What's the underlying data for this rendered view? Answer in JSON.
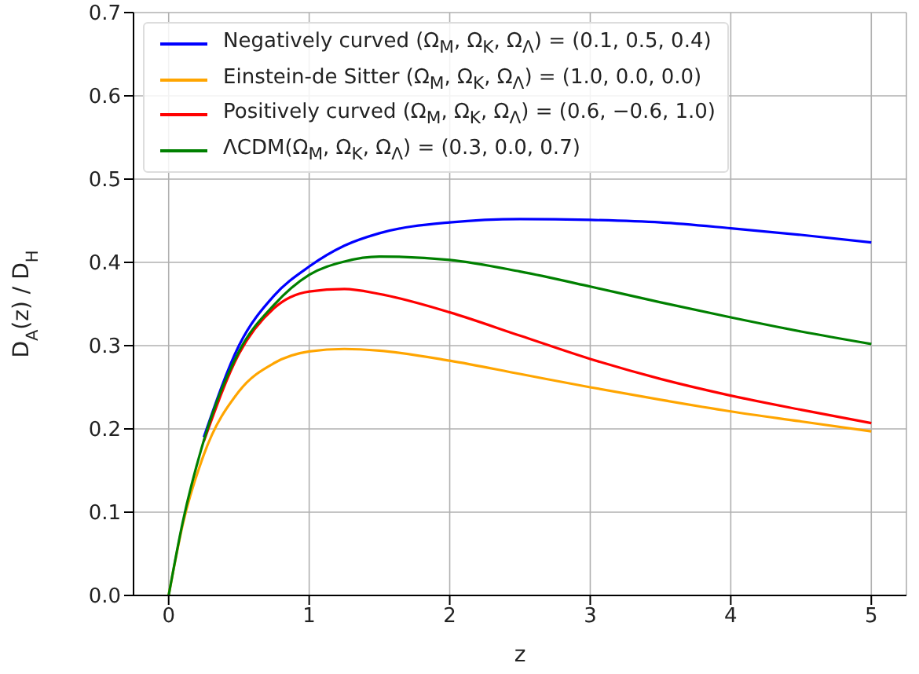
{
  "chart_data": {
    "type": "line",
    "xlabel": "z",
    "ylabel": "D$_{A}$(z) / D$_{H}$",
    "x": [
      0,
      0.1,
      0.25,
      0.5,
      0.75,
      1,
      1.25,
      1.5,
      2,
      2.5,
      3,
      3.5,
      4,
      4.5,
      5
    ],
    "series": [
      {
        "name": "Negatively curved (Ω$_{M}$, Ω$_{K}$, Ω$_{Λ}$) = (0.1, 0.5, 0.4)",
        "color": "#0000ff",
        "values": [
          null,
          null,
          0.19,
          0.3,
          0.36,
          0.395,
          0.42,
          0.435,
          0.448,
          0.452,
          0.451,
          0.448,
          0.441,
          0.433,
          0.424
        ]
      },
      {
        "name": "Einstein-de Sitter (Ω$_{M}$, Ω$_{K}$, Ω$_{Λ}$) = (1.0, 0.0, 0.0)",
        "color": "#ffa500",
        "values": [
          0,
          0.085,
          0.169,
          0.245,
          0.279,
          0.293,
          0.296,
          0.294,
          0.282,
          0.266,
          0.25,
          0.235,
          0.221,
          0.209,
          0.197
        ]
      },
      {
        "name": "Positively curved (Ω$_{M}$, Ω$_{K}$, Ω$_{Λ}$) = (0.6, −0.6, 1.0)",
        "color": "#ff0000",
        "values": [
          null,
          null,
          0.185,
          0.29,
          0.345,
          0.365,
          0.368,
          0.362,
          0.34,
          0.312,
          0.284,
          0.26,
          0.24,
          0.223,
          0.207
        ]
      },
      {
        "name": "ΛCDM(Ω$_{M}$, Ω$_{K}$, Ω$_{Λ}$) = (0.3, 0.0, 0.7)",
        "color": "#008000",
        "values": [
          0,
          0.088,
          0.186,
          0.293,
          0.349,
          0.385,
          0.401,
          0.407,
          0.403,
          0.389,
          0.371,
          0.352,
          0.334,
          0.317,
          0.302
        ]
      }
    ],
    "xlim": [
      -0.25,
      5.25
    ],
    "xticks": [
      0,
      1,
      2,
      3,
      4,
      5
    ],
    "ylim": [
      0,
      0.7
    ],
    "yticks": [
      {
        "value": 0,
        "label": "0.0"
      },
      0.1,
      0.2,
      0.3,
      0.4,
      0.5,
      0.6,
      0.7
    ],
    "grid": true,
    "legend": "top left",
    "marker": "none",
    "line_style": "solid"
  }
}
